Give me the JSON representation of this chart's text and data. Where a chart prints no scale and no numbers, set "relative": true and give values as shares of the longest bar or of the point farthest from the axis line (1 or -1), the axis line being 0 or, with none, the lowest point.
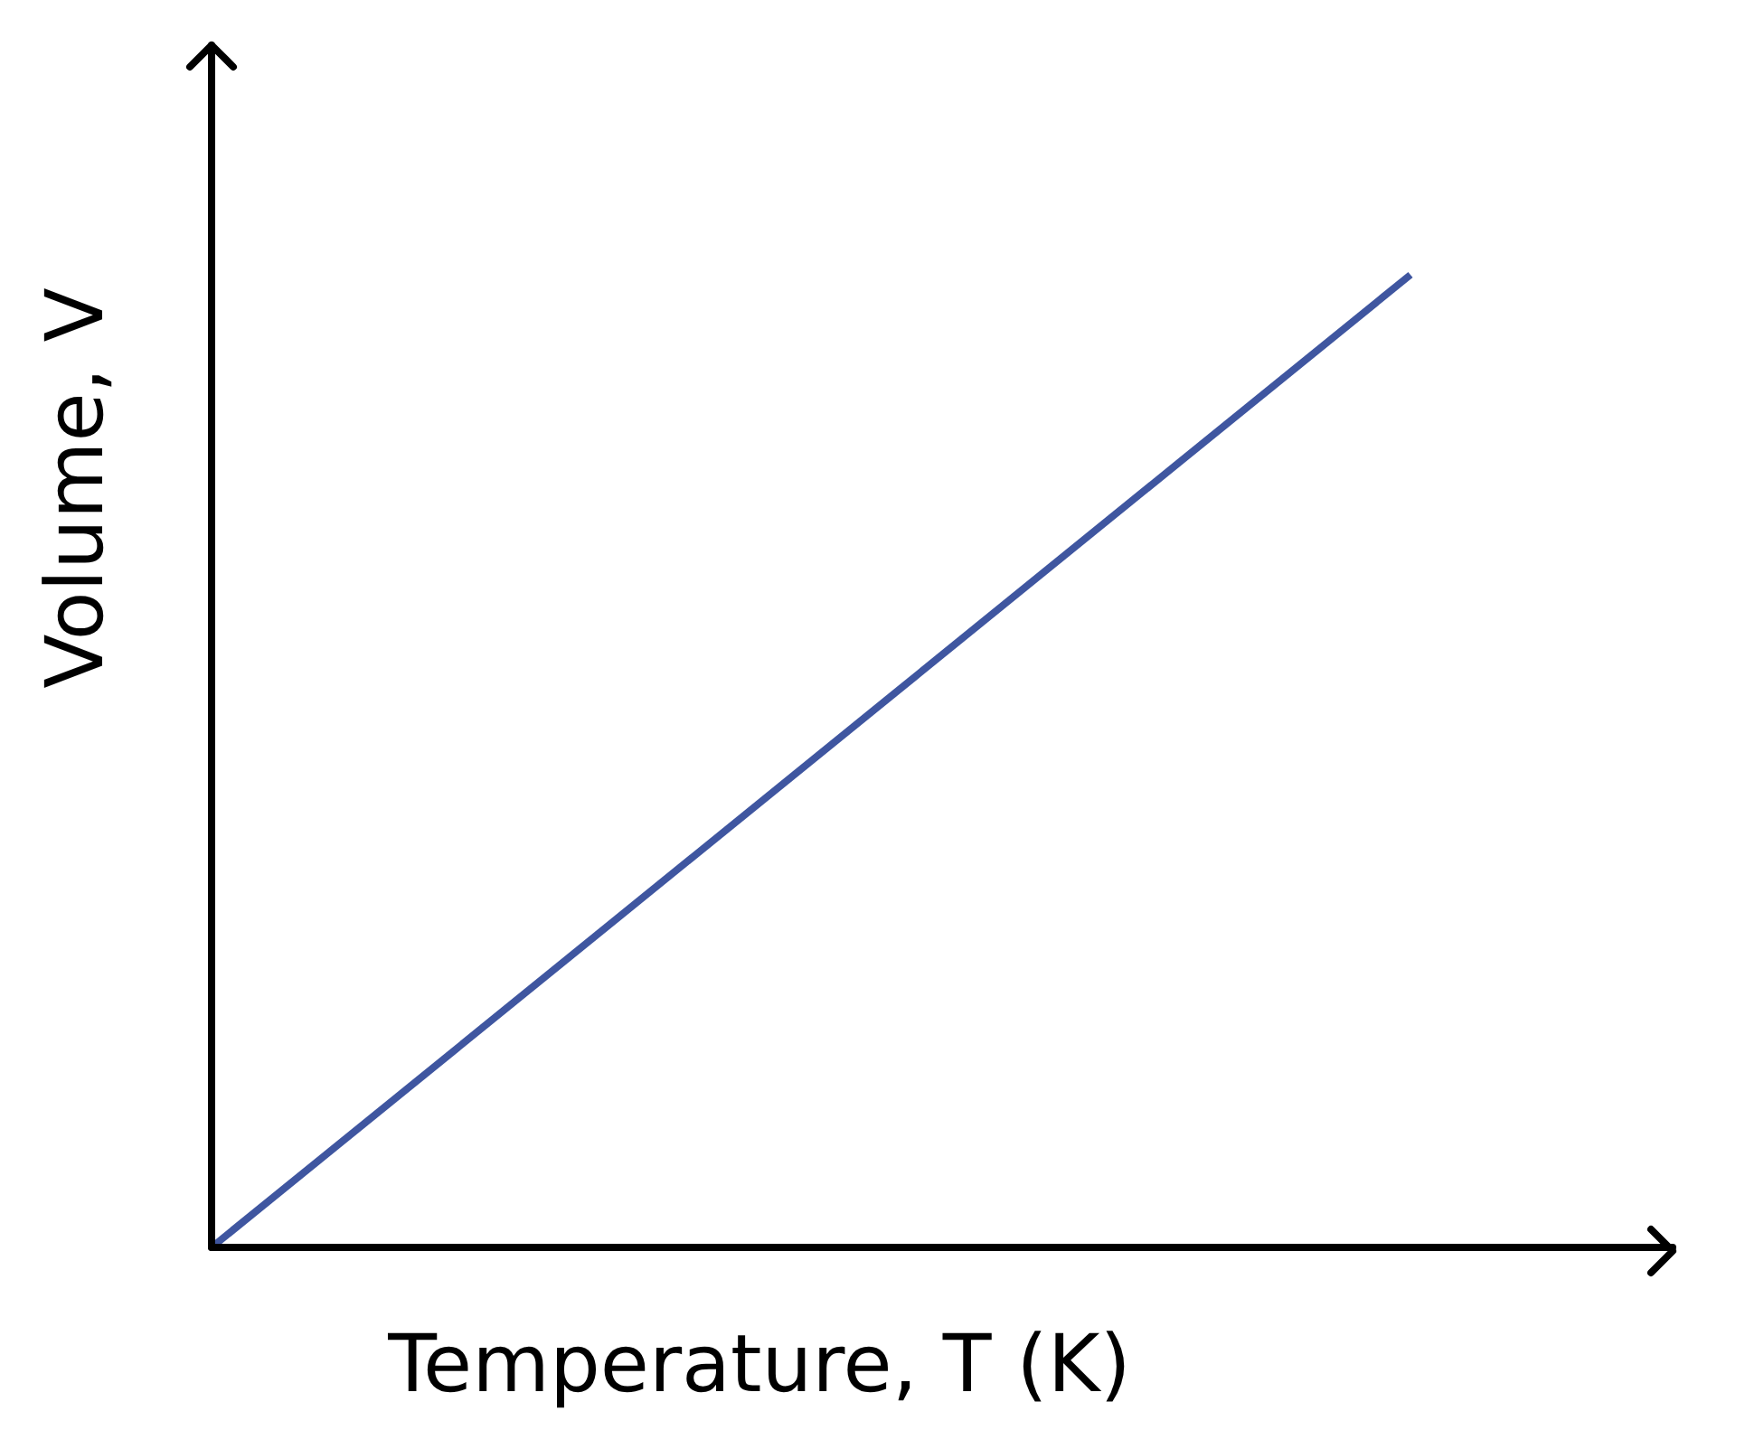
{
  "chart_data": {
    "type": "line",
    "xlabel": "Temperature, T (K)",
    "ylabel": "Volume, V",
    "categories": [
      null,
      null
    ],
    "relative": true,
    "series": [
      {
        "color": "#3f56a0",
        "values": [
          0,
          1
        ]
      }
    ]
  }
}
